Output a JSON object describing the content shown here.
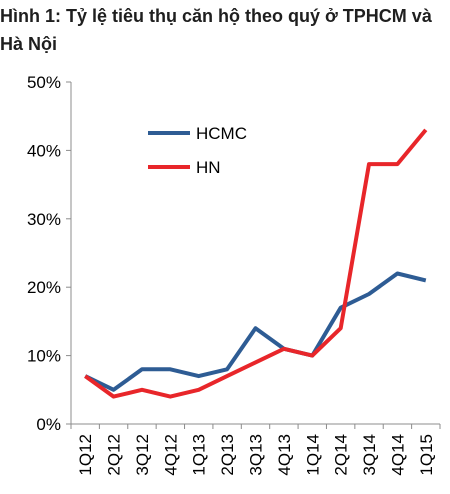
{
  "title": "Hình 1: Tỷ lệ tiêu thụ căn hộ theo quý ở TPHCM và Hà Nội",
  "chart_data": {
    "type": "line",
    "categories": [
      "1Q12",
      "2Q12",
      "3Q12",
      "4Q12",
      "1Q13",
      "2Q13",
      "3Q13",
      "4Q13",
      "1Q14",
      "2Q14",
      "3Q14",
      "4Q14",
      "1Q15"
    ],
    "series": [
      {
        "name": "HCMC",
        "color": "#2e5c94",
        "values": [
          7,
          5,
          8,
          8,
          7,
          8,
          14,
          11,
          10,
          17,
          19,
          22,
          21
        ]
      },
      {
        "name": "HN",
        "color": "#e8262a",
        "values": [
          7,
          4,
          5,
          4,
          5,
          7,
          9,
          11,
          10,
          14,
          38,
          38,
          43
        ]
      }
    ],
    "ylim": [
      0,
      50
    ],
    "yticks": [
      0,
      10,
      20,
      30,
      40,
      50
    ],
    "ytick_labels": [
      "0%",
      "10%",
      "20%",
      "30%",
      "40%",
      "50%"
    ],
    "grid": false,
    "legend_position": "upper-left"
  }
}
